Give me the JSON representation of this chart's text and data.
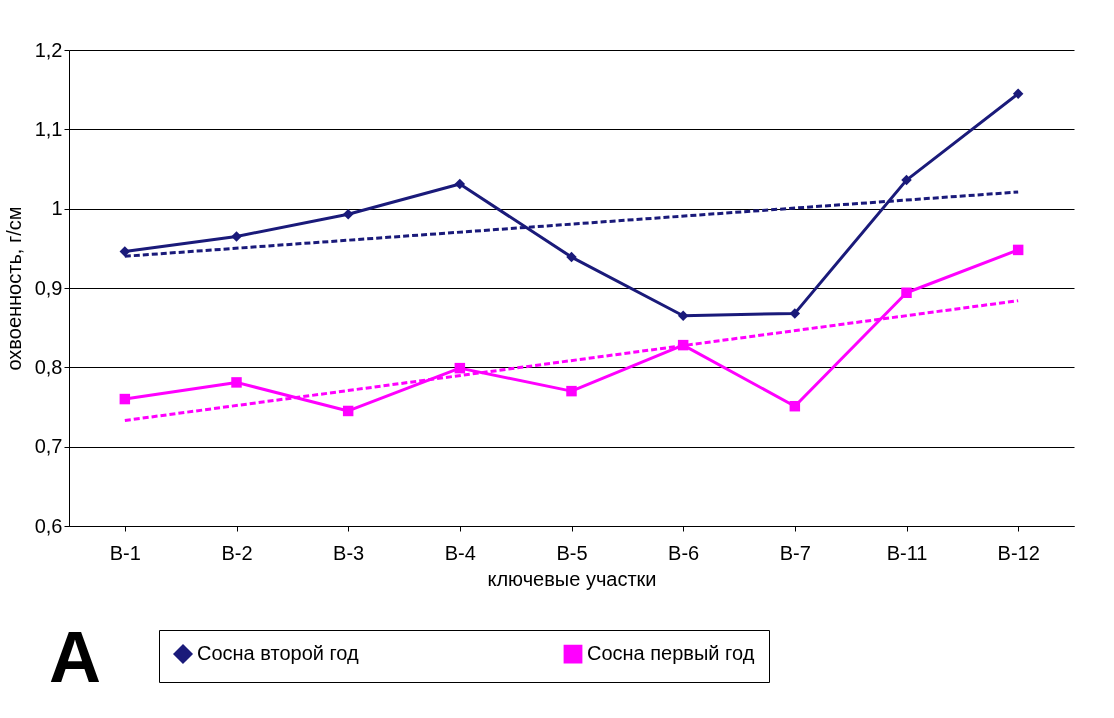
{
  "chart_data": {
    "type": "line",
    "xlabel": "ключевые участки",
    "ylabel": "охвоенность, г/см",
    "categories": [
      "В-1",
      "В-2",
      "В-3",
      "В-4",
      "В-5",
      "В-6",
      "В-7",
      "В-11",
      "В-12"
    ],
    "series": [
      {
        "name": "Сосна второй год",
        "color": "#1a1a7a",
        "marker": "diamond",
        "values": [
          0.946,
          0.965,
          0.993,
          1.031,
          0.939,
          0.865,
          0.868,
          1.036,
          1.145
        ]
      },
      {
        "name": "Сосна первый год",
        "color": "#ff00ff",
        "marker": "square",
        "values": [
          0.76,
          0.781,
          0.745,
          0.799,
          0.77,
          0.828,
          0.751,
          0.894,
          0.948
        ]
      },
      {
        "type": "line",
        "color": "#1a1a7a",
        "marker": "none",
        "line_style": "dashed",
        "x": [
          "В-1",
          "В-12"
        ],
        "values": [
          0.94,
          1.021
        ]
      },
      {
        "type": "line",
        "color": "#ff00ff",
        "marker": "none",
        "line_style": "dashed",
        "x": [
          "В-1",
          "В-12"
        ],
        "values": [
          0.733,
          0.884
        ]
      }
    ],
    "ylim": [
      0.6,
      1.2
    ],
    "yticks": [
      {
        "value": 0.6,
        "label": "0,6"
      },
      {
        "value": 0.7,
        "label": "0,7"
      },
      {
        "value": 0.8,
        "label": "0,8"
      },
      {
        "value": 0.9,
        "label": "0,9"
      },
      1,
      {
        "value": 1.1,
        "label": "1,1"
      },
      {
        "value": 1.2,
        "label": "1,2"
      }
    ],
    "grid": "y",
    "legend": "bottom",
    "annotations": [
      "A"
    ]
  }
}
